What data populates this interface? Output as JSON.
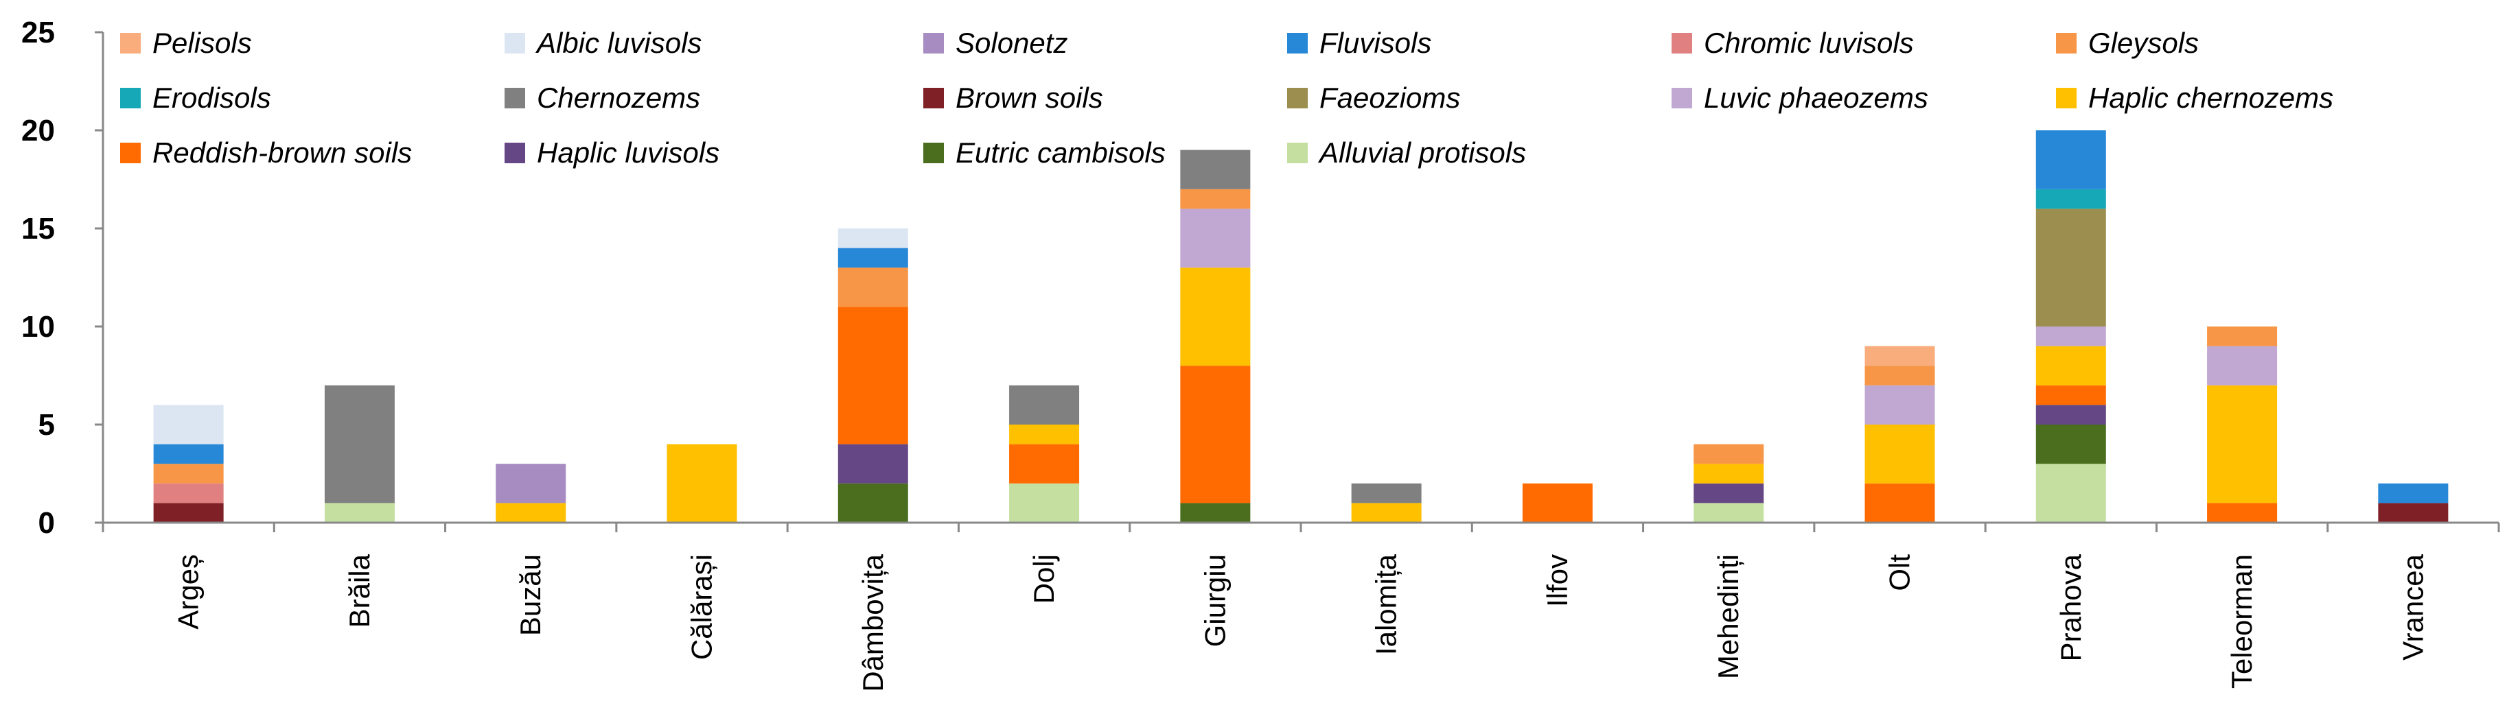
{
  "chart_data": {
    "type": "bar",
    "stacked": true,
    "title": "",
    "xlabel": "",
    "ylabel": "",
    "ylim": [
      0,
      25
    ],
    "yticks": [
      0,
      5,
      10,
      15,
      20,
      25
    ],
    "grid": false,
    "legend_position": "top",
    "categories": [
      "Argeș",
      "Brăila",
      "Buzău",
      "Călărași",
      "Dâmbovița",
      "Dolj",
      "Giurgiu",
      "Ialomița",
      "Ilfov",
      "Mehedinți",
      "Olt",
      "Prahova",
      "Teleorman",
      "Vrancea"
    ],
    "series": [
      {
        "name": "Alluvial protisols",
        "color": "#C4DFA0",
        "values": [
          0,
          1,
          0,
          0,
          0,
          2,
          0,
          0,
          0,
          1,
          0,
          3,
          0,
          0
        ]
      },
      {
        "name": "Eutric cambisols",
        "color": "#4A6E1E",
        "values": [
          0,
          0,
          0,
          0,
          2,
          0,
          1,
          0,
          0,
          0,
          0,
          2,
          0,
          0
        ]
      },
      {
        "name": "Brown soils",
        "color": "#7F2027",
        "values": [
          1,
          0,
          0,
          0,
          0,
          0,
          0,
          0,
          0,
          0,
          0,
          0,
          0,
          1
        ]
      },
      {
        "name": "Haplic luvisols",
        "color": "#664785",
        "values": [
          0,
          0,
          0,
          0,
          2,
          0,
          0,
          0,
          0,
          1,
          0,
          1,
          0,
          0
        ]
      },
      {
        "name": "Reddish-brown soils",
        "color": "#FF6B00",
        "values": [
          0,
          0,
          0,
          0,
          7,
          2,
          7,
          0,
          2,
          0,
          2,
          1,
          1,
          0
        ]
      },
      {
        "name": "Haplic chernozems",
        "color": "#FFC000",
        "values": [
          0,
          0,
          1,
          4,
          0,
          1,
          5,
          1,
          0,
          1,
          3,
          2,
          6,
          0
        ]
      },
      {
        "name": "Luvic phaeozems",
        "color": "#C0A8D2",
        "values": [
          0,
          0,
          0,
          0,
          0,
          0,
          3,
          0,
          0,
          0,
          2,
          1,
          2,
          0
        ]
      },
      {
        "name": "Faeozioms",
        "color": "#9B8E4E",
        "values": [
          0,
          0,
          0,
          0,
          0,
          0,
          0,
          0,
          0,
          0,
          0,
          6,
          0,
          0
        ]
      },
      {
        "name": "Solonetz",
        "color": "#A68CC0",
        "values": [
          0,
          0,
          2,
          0,
          0,
          0,
          0,
          0,
          0,
          0,
          0,
          0,
          0,
          0
        ]
      },
      {
        "name": "Chromic luvisols",
        "color": "#E08080",
        "values": [
          1,
          0,
          0,
          0,
          0,
          0,
          0,
          0,
          0,
          0,
          0,
          0,
          0,
          0
        ]
      },
      {
        "name": "Gleysols",
        "color": "#F79646",
        "values": [
          1,
          0,
          0,
          0,
          2,
          0,
          1,
          0,
          0,
          1,
          1,
          0,
          1,
          0
        ]
      },
      {
        "name": "Chernozems",
        "color": "#808080",
        "values": [
          0,
          6,
          0,
          0,
          0,
          2,
          2,
          1,
          0,
          0,
          0,
          0,
          0,
          0
        ]
      },
      {
        "name": "Erodisols",
        "color": "#17A8B8",
        "values": [
          0,
          0,
          0,
          0,
          0,
          0,
          0,
          0,
          0,
          0,
          0,
          1,
          0,
          0
        ]
      },
      {
        "name": "Fluvisols",
        "color": "#2788D8",
        "values": [
          1,
          0,
          0,
          0,
          1,
          0,
          0,
          0,
          0,
          0,
          0,
          3,
          0,
          1
        ]
      },
      {
        "name": "Albic luvisols",
        "color": "#DCE6F2",
        "values": [
          2,
          0,
          0,
          0,
          1,
          0,
          0,
          0,
          0,
          0,
          0,
          0,
          0,
          0
        ]
      },
      {
        "name": "Pelisols",
        "color": "#F9AC7C",
        "values": [
          0,
          0,
          0,
          0,
          0,
          0,
          0,
          0,
          0,
          0,
          1,
          0,
          0,
          0
        ]
      }
    ],
    "legend_order": [
      "Pelisols",
      "Albic luvisols",
      "Solonetz",
      "Fluvisols",
      "Chromic luvisols",
      "Gleysols",
      "Erodisols",
      "Chernozems",
      "Brown soils",
      "Faeozioms",
      "Luvic phaeozems",
      "Haplic chernozems",
      "Reddish-brown soils",
      "Haplic luvisols",
      "Eutric cambisols",
      "Alluvial protisols"
    ]
  }
}
